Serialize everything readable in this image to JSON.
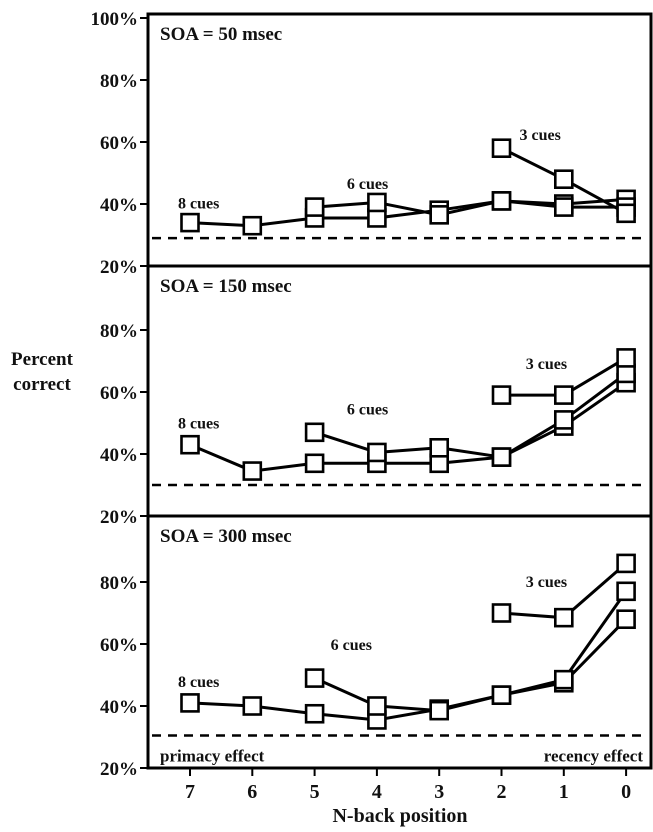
{
  "chart_data": {
    "type": "line",
    "ylabel_line1": "Percent",
    "ylabel_line2": "correct",
    "xlabel": "N-back position",
    "x_ticks": [
      "7",
      "6",
      "5",
      "4",
      "3",
      "2",
      "1",
      "0"
    ],
    "y_ticks": [
      "20%",
      "40%",
      "60%",
      "80%",
      "100%"
    ],
    "panels": [
      {
        "title": "SOA = 50 msec",
        "ylim": [
          20,
          100
        ],
        "chance": 29,
        "series": [
          {
            "label": "8 cues",
            "x": [
              7,
              6,
              5,
              4,
              3,
              2,
              1,
              0
            ],
            "y": [
              34,
              33,
              35.5,
              35.5,
              38,
              41,
              40,
              41.5
            ]
          },
          {
            "label": "6 cues",
            "x": [
              5,
              4,
              3,
              2,
              1,
              0
            ],
            "y": [
              39,
              40.5,
              36.5,
              41,
              39,
              39
            ]
          },
          {
            "label": "3 cues",
            "x": [
              2,
              1,
              0
            ],
            "y": [
              58,
              48,
              37
            ]
          }
        ],
        "annotations": []
      },
      {
        "title": "SOA = 150 msec",
        "ylim": [
          20,
          80
        ],
        "chance": 30,
        "series": [
          {
            "label": "8 cues",
            "x": [
              7,
              6,
              5,
              4,
              3,
              2,
              1,
              0
            ],
            "y": [
              43,
              34.5,
              37,
              37,
              37,
              39,
              49,
              63
            ]
          },
          {
            "label": "6 cues",
            "x": [
              5,
              4,
              3,
              2,
              1,
              0
            ],
            "y": [
              47,
              40.5,
              42,
              39,
              51,
              66
            ]
          },
          {
            "label": "3 cues",
            "x": [
              2,
              1,
              0
            ],
            "y": [
              59,
              59,
              71
            ]
          }
        ],
        "annotations": []
      },
      {
        "title": "SOA = 300 msec",
        "ylim": [
          20,
          80
        ],
        "chance": 30.5,
        "series": [
          {
            "label": "8 cues",
            "x": [
              7,
              6,
              5,
              4,
              3,
              2,
              1,
              0
            ],
            "y": [
              41,
              40,
              37.5,
              35.5,
              39,
              43.5,
              47.5,
              68
            ]
          },
          {
            "label": "6 cues",
            "x": [
              5,
              4,
              3,
              2,
              1,
              0
            ],
            "y": [
              49,
              40,
              38.5,
              43.5,
              48.5,
              77
            ]
          },
          {
            "label": "3 cues",
            "x": [
              2,
              1,
              0
            ],
            "y": [
              70,
              68.5,
              86
            ]
          }
        ],
        "annotations": [
          "primacy effect",
          "recency effect"
        ]
      }
    ]
  }
}
